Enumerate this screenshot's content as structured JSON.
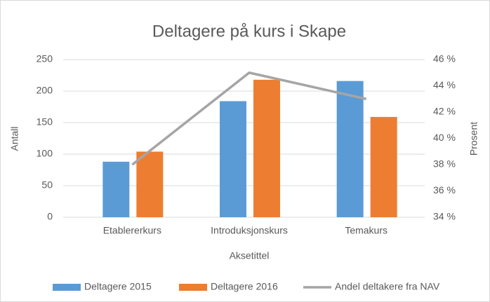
{
  "chart_data": {
    "type": "bar",
    "title": "Deltagere på kurs i Skape",
    "categories": [
      "Etablererkurs",
      "Introduksjonskurs",
      "Temakurs"
    ],
    "series": [
      {
        "name": "Deltagere 2015",
        "color": "#5b9bd5",
        "values": [
          88,
          184,
          216
        ]
      },
      {
        "name": "Deltagere 2016",
        "color": "#ed7d31",
        "values": [
          104,
          218,
          159
        ]
      },
      {
        "name": "Andel deltakere fra NAV",
        "color": "#a5a5a5",
        "type": "line",
        "axis": "y2",
        "values": [
          38,
          45,
          43
        ]
      }
    ],
    "ylim": [
      0,
      250
    ],
    "yticks": [
      0,
      50,
      100,
      150,
      200,
      250
    ],
    "y2lim": [
      34,
      46
    ],
    "y2ticks": [
      {
        "value": 34,
        "label": "34 %"
      },
      {
        "value": 36,
        "label": "36 %"
      },
      {
        "value": 38,
        "label": "38 %"
      },
      {
        "value": 40,
        "label": "40 %"
      },
      {
        "value": 42,
        "label": "42 %"
      },
      {
        "value": 44,
        "label": "44 %"
      },
      {
        "value": 46,
        "label": "46 %"
      }
    ],
    "xlabel": "Aksetittel",
    "ylabel": "Antall",
    "y2label": "Prosent",
    "grid": true,
    "legend": "bottom"
  }
}
